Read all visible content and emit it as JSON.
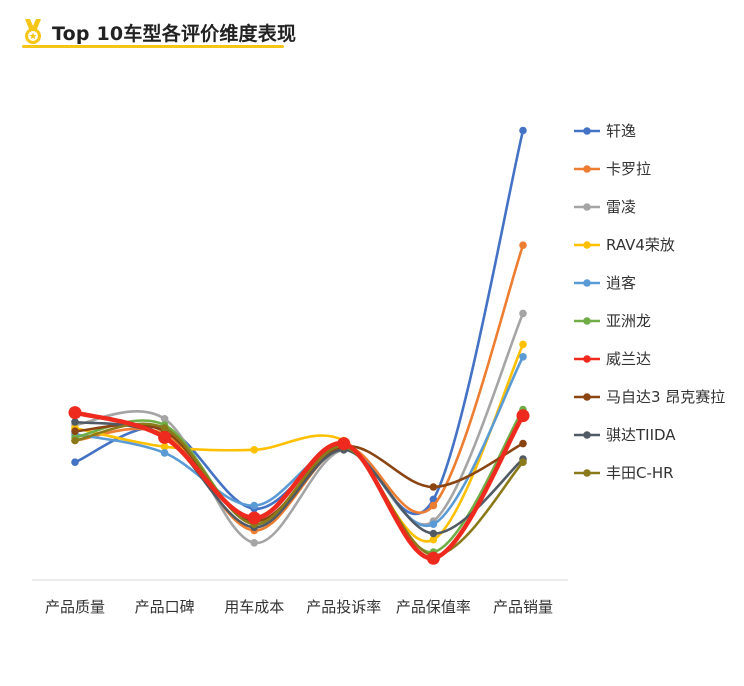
{
  "header": {
    "title": "Top 10车型各评价维度表现",
    "icon": "medal-icon"
  },
  "chart_data": {
    "type": "line",
    "smooth": true,
    "categories": [
      "产品质量",
      "产品口碑",
      "用车成本",
      "产品投诉率",
      "产品保值率",
      "产品销量"
    ],
    "legend_position": "right",
    "grid": false,
    "series": [
      {
        "name": "轩逸",
        "color": "#4472c4",
        "values": [
          0.38,
          0.49,
          0.23,
          0.43,
          0.26,
          1.45
        ]
      },
      {
        "name": "卡罗拉",
        "color": "#ed7d31",
        "values": [
          0.45,
          0.47,
          0.16,
          0.43,
          0.24,
          1.08
        ]
      },
      {
        "name": "雷凌",
        "color": "#a5a5a5",
        "values": [
          0.5,
          0.52,
          0.12,
          0.42,
          0.19,
          0.86
        ]
      },
      {
        "name": "RAV4荣放",
        "color": "#ffc000",
        "values": [
          0.49,
          0.43,
          0.42,
          0.45,
          0.13,
          0.76
        ]
      },
      {
        "name": "逍客",
        "color": "#5b9bd5",
        "values": [
          0.47,
          0.41,
          0.24,
          0.43,
          0.18,
          0.72
        ]
      },
      {
        "name": "亚洲龙",
        "color": "#70ad47",
        "values": [
          0.46,
          0.5,
          0.18,
          0.43,
          0.09,
          0.55
        ]
      },
      {
        "name": "威兰达",
        "color": "#ee2a1e",
        "values": [
          0.54,
          0.46,
          0.2,
          0.44,
          0.07,
          0.53
        ]
      },
      {
        "name": "马自达3 昂克赛拉",
        "color": "#8b4513",
        "values": [
          0.48,
          0.48,
          0.19,
          0.43,
          0.3,
          0.44
        ]
      },
      {
        "name": "骐达TIIDA",
        "color": "#505a64",
        "values": [
          0.51,
          0.46,
          0.17,
          0.42,
          0.15,
          0.39
        ]
      },
      {
        "name": "丰田C-HR",
        "color": "#8b7a1a",
        "values": [
          0.45,
          0.49,
          0.18,
          0.43,
          0.08,
          0.38
        ]
      }
    ]
  }
}
